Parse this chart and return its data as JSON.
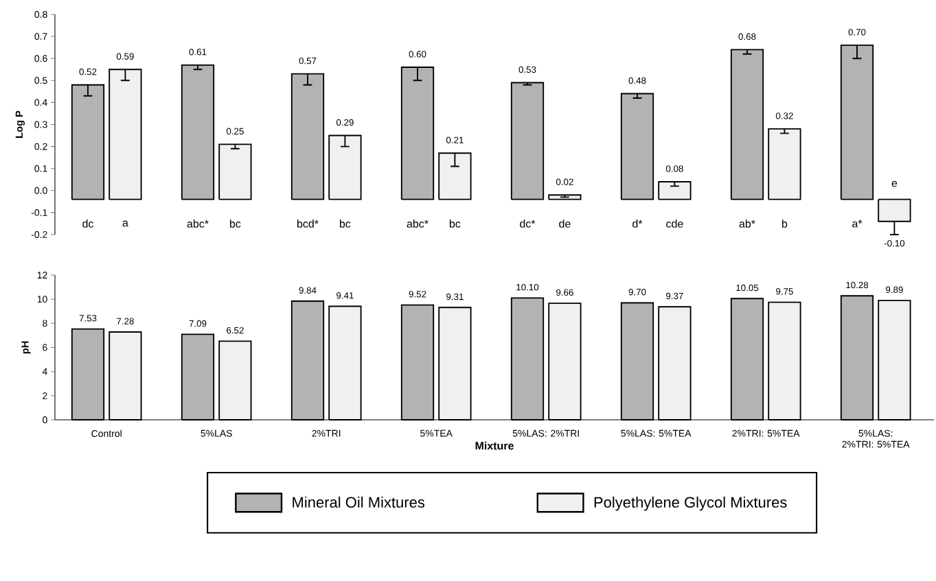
{
  "chart_data": [
    {
      "type": "bar",
      "ylabel": "Log P",
      "categories": [
        null,
        null,
        null,
        null,
        null,
        null,
        null,
        null
      ],
      "series": [
        {
          "color": "#b3b3b3",
          "values": [
            0.52,
            0.61,
            0.57,
            0.6,
            0.53,
            0.48,
            0.68,
            0.7
          ],
          "base": [
            -0.04,
            -0.04,
            -0.04,
            -0.04,
            -0.04,
            -0.04,
            -0.04,
            -0.04
          ],
          "errors": [
            [
              0.43,
              0.48
            ],
            [
              0.55,
              0.57
            ],
            [
              0.48,
              0.53
            ],
            [
              0.5,
              0.56
            ],
            [
              0.48,
              0.49
            ],
            [
              0.42,
              0.44
            ],
            [
              0.62,
              0.64
            ],
            [
              0.6,
              0.66
            ]
          ],
          "value_labels": [
            "0.52",
            "0.61",
            "0.57",
            "0.60",
            "0.53",
            "0.48",
            "0.68",
            "0.70"
          ]
        },
        {
          "color": "#f0f0f0",
          "values": [
            0.59,
            0.25,
            0.29,
            0.21,
            0.02,
            0.08,
            0.32,
            -0.1
          ],
          "base": [
            -0.04,
            -0.04,
            -0.04,
            -0.04,
            -0.04,
            -0.04,
            -0.04,
            -0.04
          ],
          "errors": [
            [
              0.5,
              0.55
            ],
            [
              0.19,
              0.21
            ],
            [
              0.2,
              0.25
            ],
            [
              0.11,
              0.17
            ],
            [
              -0.03,
              -0.02
            ],
            [
              0.02,
              0.04
            ],
            [
              0.26,
              0.28
            ],
            [
              -0.2,
              -0.14
            ]
          ],
          "value_labels": [
            "0.59",
            "0.25",
            "0.29",
            "0.21",
            "0.02",
            "0.08",
            "0.32",
            "-0.10"
          ]
        }
      ],
      "ylim": [
        -0.2,
        0.8
      ],
      "yticks": [
        0.8,
        0.7,
        0.6,
        0.5,
        0.4,
        0.3,
        0.2,
        0.1,
        {
          "value": 0,
          "label": "0.0"
        },
        -0.1,
        -0.2
      ],
      "tick_labels": "y",
      "annotations": [
        "dc",
        "a",
        "abc*",
        "bc",
        "bcd*",
        "bc",
        "abc*",
        "bc",
        "dc*",
        "de",
        "d*",
        "cde",
        "ab*",
        "b",
        "a*",
        "e"
      ]
    },
    {
      "type": "bar",
      "ylabel": "pH",
      "xlabel": "Mixture",
      "categories": [
        "Control",
        "5%LAS",
        "2%TRI",
        "5%TEA",
        "5%LAS: 2%TRI",
        "5%LAS: 5%TEA",
        "2%TRI: 5%TEA",
        "5%LAS: 2%TRI: 5%TEA"
      ],
      "series": [
        {
          "name": "Mineral Oil Mixtures",
          "color": "#b3b3b3",
          "values": [
            7.53,
            7.09,
            9.84,
            9.52,
            10.1,
            9.7,
            10.05,
            10.28
          ],
          "value_labels": [
            "7.53",
            "7.09",
            "9.84",
            "9.52",
            "10.10",
            "9.70",
            "10.05",
            "10.28"
          ]
        },
        {
          "name": "Polyethylene Glycol Mixtures",
          "color": "#f0f0f0",
          "values": [
            7.28,
            6.52,
            9.41,
            9.31,
            9.66,
            9.37,
            9.75,
            9.89
          ],
          "value_labels": [
            "7.28",
            "6.52",
            "9.41",
            "9.31",
            "9.66",
            "9.37",
            "9.75",
            "9.89"
          ]
        }
      ],
      "ylim": [
        0,
        12
      ],
      "yticks": [
        0,
        2,
        4,
        6,
        8,
        10,
        12
      ],
      "legend": "bottom"
    }
  ]
}
